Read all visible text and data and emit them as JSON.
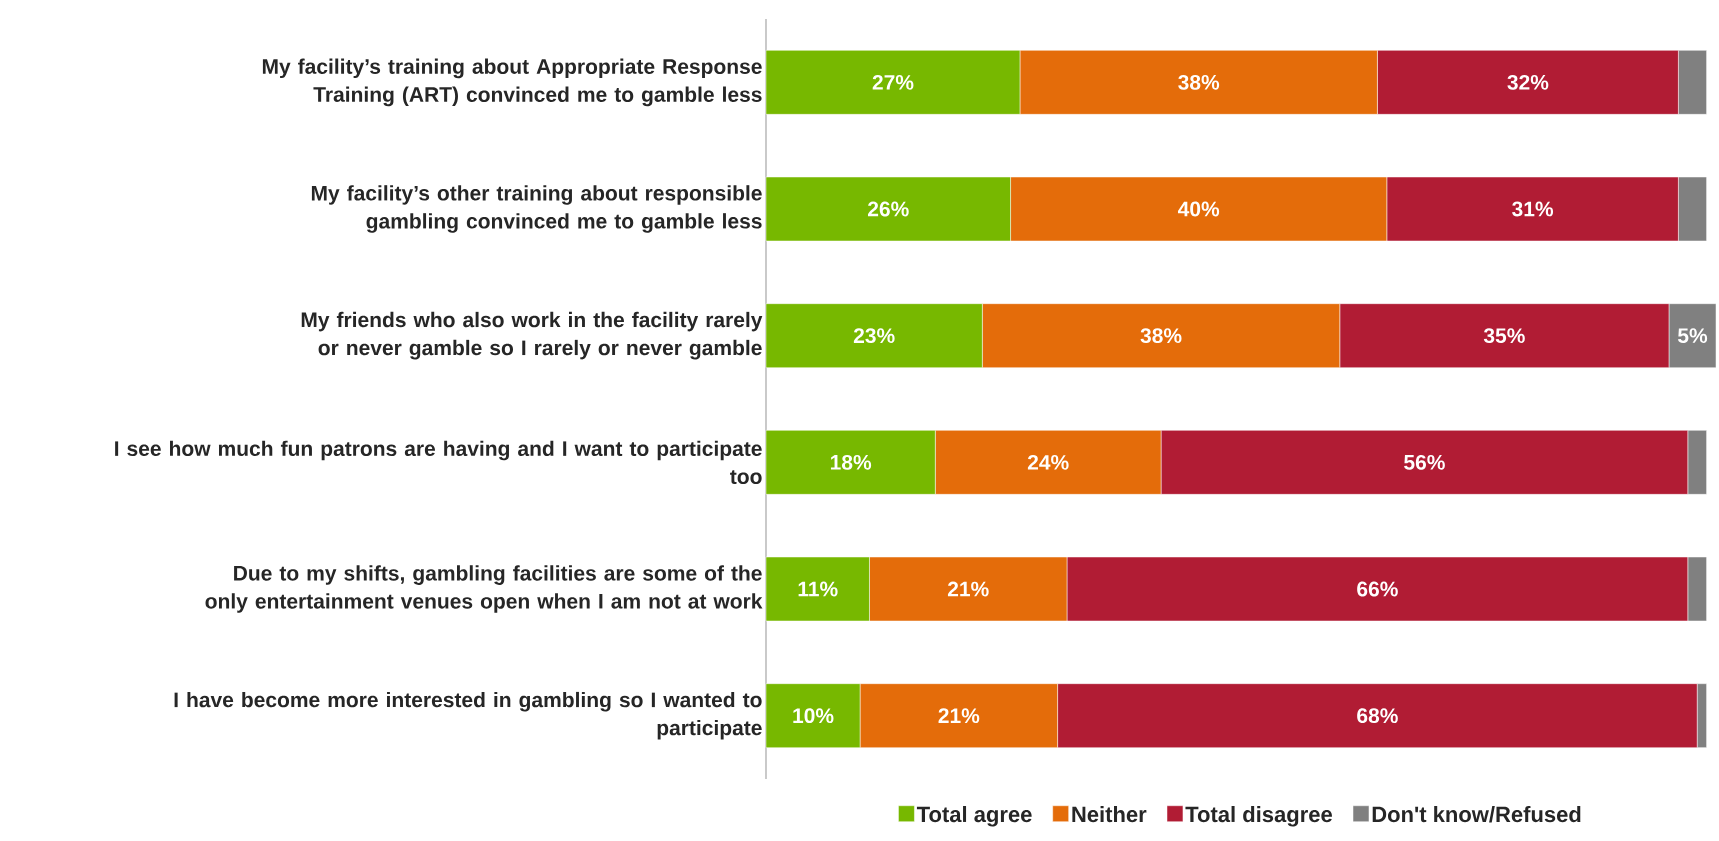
{
  "chart_data": {
    "type": "bar",
    "orientation": "horizontal",
    "stacked": true,
    "legend": "bottom",
    "categories": [
      "My facility’s training about Appropriate Response Training (ART) convinced me to gamble less",
      "My facility’s other training about responsible gambling convinced me to gamble less",
      "My friends who also work in the facility rarely or never gamble so I rarely or never gamble",
      "I see how much fun patrons are having and I want to participate too",
      "Due to my shifts, gambling facilities are some of the only entertainment venues open when I am not at work",
      "I have become more interested in gambling so I wanted to participate"
    ],
    "series": [
      {
        "name": "Total agree",
        "color": "#77b800",
        "values": [
          27,
          26,
          23,
          18,
          11,
          10
        ],
        "value_labels": [
          "27%",
          "26%",
          "23%",
          "18%",
          "11%",
          "10%"
        ]
      },
      {
        "name": "Neither",
        "color": "#e46c0a",
        "values": [
          38,
          40,
          38,
          24,
          21,
          21
        ],
        "value_labels": [
          "38%",
          "40%",
          "38%",
          "24%",
          "21%",
          "21%"
        ]
      },
      {
        "name": "Total disagree",
        "color": "#b11c34",
        "values": [
          32,
          31,
          35,
          56,
          66,
          68
        ],
        "value_labels": [
          "32%",
          "31%",
          "35%",
          "56%",
          "66%",
          "68%"
        ]
      },
      {
        "name": "Don't know/Refused",
        "color": "#808080",
        "values": [
          3,
          3,
          5,
          2,
          2,
          1
        ],
        "value_labels": [
          null,
          null,
          "5%",
          null,
          null,
          null
        ]
      }
    ]
  }
}
